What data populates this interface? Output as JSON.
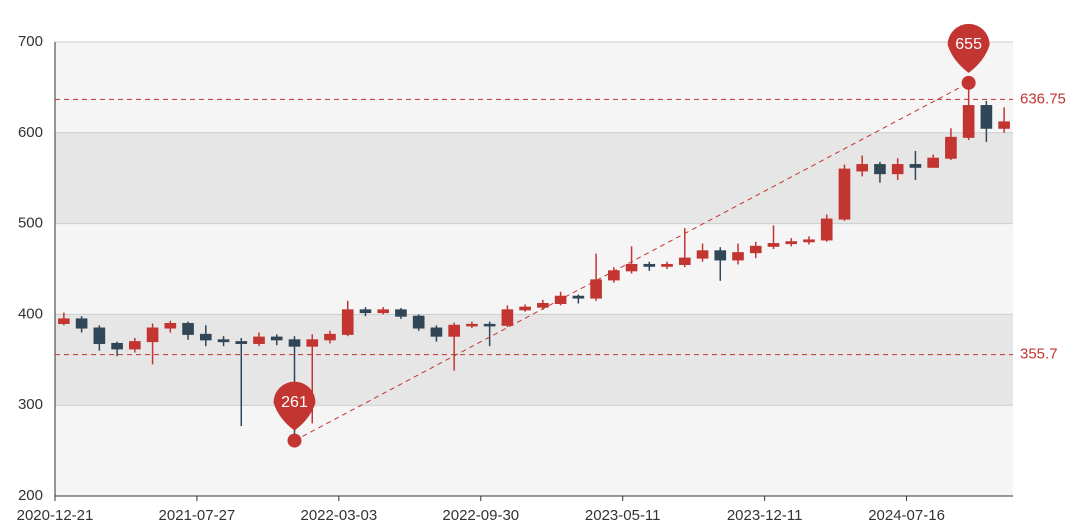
{
  "chart_data": {
    "type": "candlestick",
    "categories": [
      "2020-12-21",
      null,
      null,
      null,
      null,
      null,
      null,
      null,
      "2021-07-27",
      null,
      null,
      null,
      null,
      null,
      null,
      null,
      "2022-03-03",
      null,
      null,
      null,
      null,
      null,
      null,
      null,
      "2022-09-30",
      null,
      null,
      null,
      null,
      null,
      null,
      null,
      "2023-05-11",
      null,
      null,
      null,
      null,
      null,
      null,
      null,
      "2023-12-11",
      null,
      null,
      null,
      null,
      null,
      null,
      null,
      "2024-07-16",
      null,
      null,
      null,
      null,
      null
    ],
    "open": [
      390,
      395,
      385,
      368,
      362,
      370,
      385,
      390,
      378,
      372,
      370,
      368,
      375,
      372,
      365,
      372,
      378,
      405,
      402,
      405,
      398,
      385,
      376,
      388,
      389,
      388,
      405,
      408,
      412,
      420,
      418,
      438,
      448,
      455,
      453,
      455,
      462,
      470,
      460,
      468,
      475,
      478,
      480,
      482,
      505,
      558,
      565,
      555,
      565,
      562,
      572,
      595,
      630,
      605
    ],
    "close": [
      395,
      385,
      368,
      362,
      370,
      385,
      390,
      378,
      372,
      370,
      368,
      375,
      372,
      365,
      372,
      378,
      405,
      402,
      405,
      398,
      385,
      376,
      388,
      389,
      388,
      405,
      408,
      412,
      420,
      418,
      438,
      448,
      455,
      453,
      455,
      462,
      470,
      460,
      468,
      475,
      478,
      480,
      482,
      505,
      560,
      565,
      555,
      565,
      562,
      572,
      595,
      630,
      605,
      612
    ],
    "low": [
      388,
      380,
      360,
      354,
      358,
      345,
      380,
      372,
      365,
      365,
      277,
      365,
      366,
      261,
      280,
      368,
      376,
      398,
      400,
      395,
      382,
      370,
      338,
      385,
      365,
      386,
      403,
      405,
      410,
      412,
      415,
      435,
      445,
      448,
      450,
      452,
      458,
      437,
      455,
      462,
      472,
      475,
      477,
      480,
      503,
      552,
      545,
      548,
      548,
      565,
      570,
      592,
      590,
      600
    ],
    "high": [
      402,
      398,
      388,
      370,
      374,
      390,
      393,
      392,
      388,
      376,
      374,
      380,
      378,
      376,
      378,
      382,
      415,
      408,
      408,
      407,
      400,
      388,
      391,
      392,
      392,
      410,
      411,
      416,
      425,
      422,
      467,
      452,
      475,
      458,
      458,
      495,
      478,
      474,
      478,
      480,
      498,
      484,
      486,
      510,
      565,
      575,
      568,
      572,
      580,
      576,
      605,
      655,
      635,
      628
    ],
    "up_color": "#c23531",
    "down_color": "#314656",
    "ylim": [
      200,
      700
    ],
    "yticks": [
      200,
      300,
      400,
      500,
      600,
      700
    ],
    "grid": true,
    "split_area": true,
    "max_point": 655,
    "min_point": 261,
    "mark_lines": [
      636.75,
      355.7
    ],
    "mark_color": "#c23531"
  }
}
